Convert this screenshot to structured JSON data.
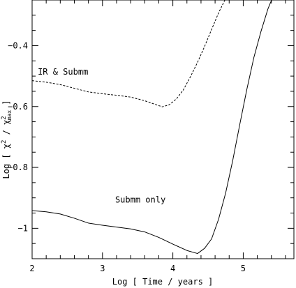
{
  "chart_data": {
    "type": "line",
    "xlabel": "Log [ Time / years ]",
    "ylabel_parts": {
      "prefix": "Log [ χ",
      "sup1": "2",
      "middle": " / χ",
      "sup2": "2",
      "sub2": "max",
      "suffix": " ]"
    },
    "xlim": [
      2,
      5.72
    ],
    "ylim": [
      -1.1,
      -0.25
    ],
    "xticks": [
      {
        "value": 2,
        "label": "2"
      },
      {
        "value": 3,
        "label": "3"
      },
      {
        "value": 4,
        "label": "4"
      },
      {
        "value": 5,
        "label": "5"
      }
    ],
    "yticks": [
      {
        "value": -0.4,
        "label": "−0.4"
      },
      {
        "value": -0.6,
        "label": "−0.6"
      },
      {
        "value": -0.8,
        "label": "−0.8"
      },
      {
        "value": -1.0,
        "label": "−1"
      }
    ],
    "grid": false,
    "legend": "none",
    "series": [
      {
        "name": "IR & Submm",
        "style": "dashed",
        "color": "#000000",
        "x": [
          2.0,
          2.2,
          2.4,
          2.6,
          2.8,
          3.0,
          3.2,
          3.4,
          3.6,
          3.75,
          3.85,
          3.95,
          4.05,
          4.15,
          4.25,
          4.35,
          4.45,
          4.55,
          4.65,
          4.75
        ],
        "y": [
          -0.515,
          -0.52,
          -0.528,
          -0.54,
          -0.552,
          -0.558,
          -0.563,
          -0.569,
          -0.581,
          -0.593,
          -0.601,
          -0.594,
          -0.575,
          -0.545,
          -0.502,
          -0.455,
          -0.403,
          -0.347,
          -0.292,
          -0.245
        ]
      },
      {
        "name": "Submm only",
        "style": "solid",
        "color": "#000000",
        "x": [
          2.0,
          2.2,
          2.4,
          2.6,
          2.8,
          3.0,
          3.2,
          3.4,
          3.6,
          3.8,
          4.0,
          4.2,
          4.35,
          4.45,
          4.55,
          4.65,
          4.75,
          4.85,
          4.95,
          5.05,
          5.15,
          5.25,
          5.35,
          5.42
        ],
        "y": [
          -0.942,
          -0.946,
          -0.953,
          -0.967,
          -0.983,
          -0.99,
          -0.996,
          -1.002,
          -1.012,
          -1.03,
          -1.052,
          -1.073,
          -1.083,
          -1.066,
          -1.035,
          -0.97,
          -0.884,
          -0.778,
          -0.66,
          -0.545,
          -0.44,
          -0.355,
          -0.28,
          -0.24
        ]
      }
    ],
    "annotations": [
      {
        "text": "IR & Submm",
        "x": 2.08,
        "y": -0.495
      },
      {
        "text": "Submm only",
        "x": 3.18,
        "y": -0.915
      }
    ]
  }
}
